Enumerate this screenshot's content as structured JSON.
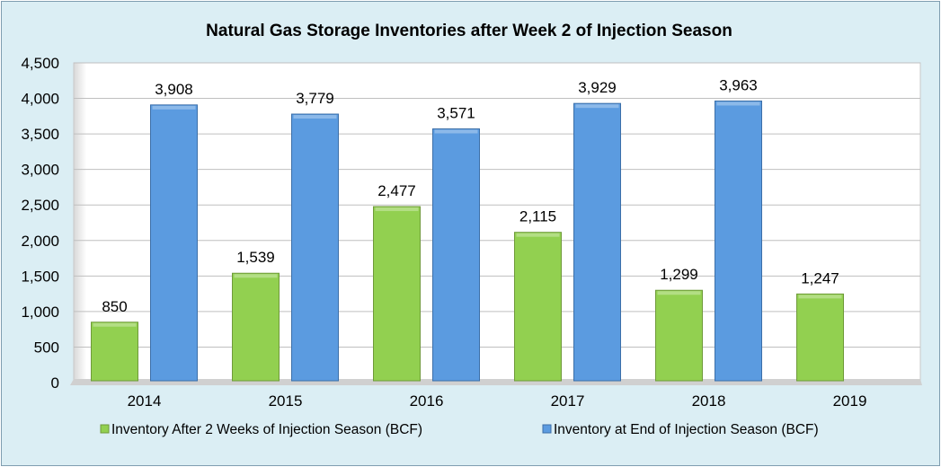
{
  "chart_data": {
    "type": "bar",
    "title": "Natural Gas Storage Inventories after Week 2 of Injection Season",
    "xlabel": "",
    "ylabel": "",
    "categories": [
      "2014",
      "2015",
      "2016",
      "2017",
      "2018",
      "2019"
    ],
    "series": [
      {
        "name": "Inventory After 2 Weeks of Injection Season (BCF)",
        "color": "#92D050",
        "values": [
          850,
          1539,
          2477,
          2115,
          1299,
          1247
        ],
        "labels": [
          "850",
          "1,539",
          "2,477",
          "2,115",
          "1,299",
          "1,247"
        ]
      },
      {
        "name": "Inventory at End of Injection Season (BCF)",
        "color": "#5B9BE0",
        "values": [
          3908,
          3779,
          3571,
          3929,
          3963,
          null
        ],
        "labels": [
          "3,908",
          "3,779",
          "3,571",
          "3,929",
          "3,963",
          null
        ]
      }
    ],
    "ylim": [
      0,
      4500
    ],
    "yticks": [
      "0",
      "500",
      "1,000",
      "1,500",
      "2,000",
      "2,500",
      "3,000",
      "3,500",
      "4,000",
      "4,500"
    ],
    "grid": true,
    "legend": "bottom"
  }
}
